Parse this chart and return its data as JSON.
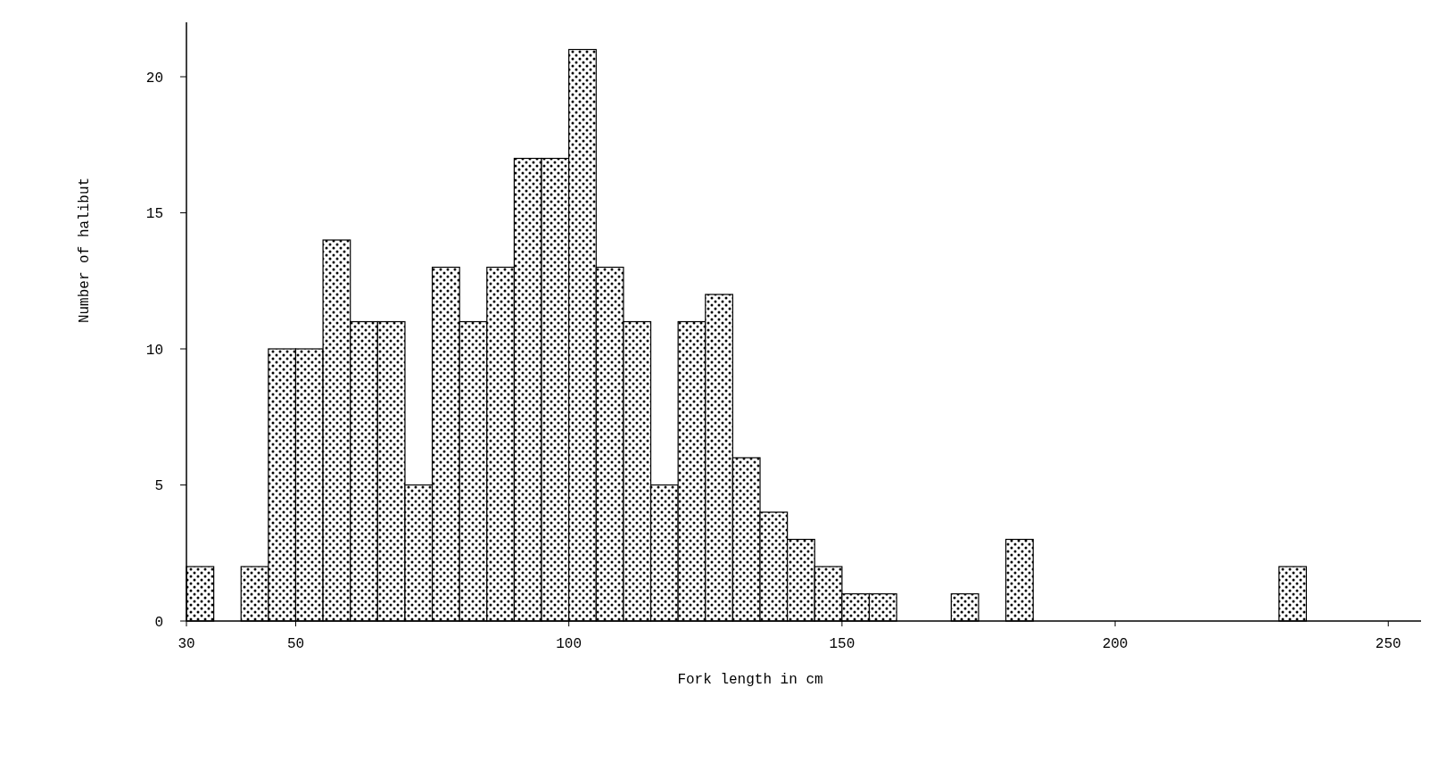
{
  "chart_data": {
    "type": "histogram",
    "xlabel": "Fork length in cm",
    "ylabel": "Number of halibut",
    "bins": [
      30,
      35,
      40,
      45,
      50,
      55,
      60,
      65,
      70,
      75,
      80,
      85,
      90,
      95,
      100,
      105,
      110,
      115,
      120,
      125,
      130,
      135,
      140,
      145,
      150,
      155,
      160,
      165,
      170,
      175,
      180,
      185,
      190,
      195,
      200,
      205,
      210,
      215,
      220,
      225,
      230,
      235
    ],
    "values": [
      2,
      0,
      2,
      10,
      10,
      14,
      11,
      11,
      5,
      13,
      11,
      13,
      17,
      17,
      21,
      13,
      11,
      5,
      11,
      12,
      6,
      4,
      3,
      2,
      1,
      1,
      0,
      0,
      1,
      0,
      3,
      0,
      0,
      0,
      0,
      0,
      0,
      0,
      0,
      0,
      2
    ],
    "color": "#000000",
    "xlim": [
      30,
      256
    ],
    "xticks": [
      30,
      50,
      100,
      150,
      200,
      250
    ],
    "ylim": [
      0,
      22
    ],
    "yticks": [
      0,
      5,
      10,
      15,
      20
    ],
    "grid": false
  }
}
